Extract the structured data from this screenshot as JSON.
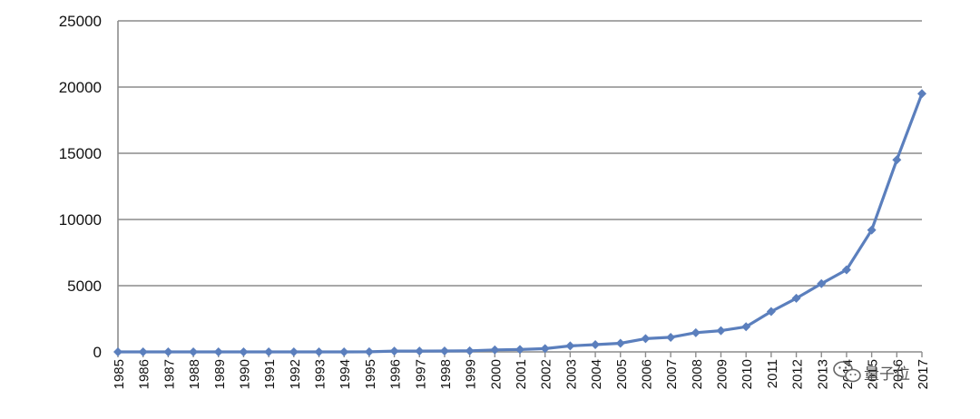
{
  "chart_data": {
    "type": "line",
    "title": "",
    "xlabel": "",
    "ylabel": "",
    "ylim": [
      0,
      25000
    ],
    "yticks": [
      "0",
      "5000",
      "10000",
      "15000",
      "20000",
      "25000"
    ],
    "grid": true,
    "legend": "none",
    "categories": [
      "1985",
      "1986",
      "1987",
      "1988",
      "1989",
      "1990",
      "1991",
      "1992",
      "1993",
      "1994",
      "1995",
      "1996",
      "1997",
      "1998",
      "1999",
      "2000",
      "2001",
      "2002",
      "2003",
      "2004",
      "2005",
      "2006",
      "2007",
      "2008",
      "2009",
      "2010",
      "2011",
      "2012",
      "2013",
      "2014",
      "2015",
      "2016",
      "2017"
    ],
    "series": [
      {
        "values": [
          0,
          0,
          0,
          0,
          0,
          0,
          0,
          0,
          0,
          0,
          10,
          60,
          60,
          70,
          80,
          150,
          180,
          250,
          450,
          550,
          650,
          1000,
          1100,
          1450,
          1600,
          1900,
          3050,
          4050,
          5150,
          6200,
          9200,
          14500,
          19500
        ],
        "color": "#5b7fbd"
      }
    ]
  },
  "watermark": {
    "text": "量子位",
    "icon": "wechat-icon"
  }
}
